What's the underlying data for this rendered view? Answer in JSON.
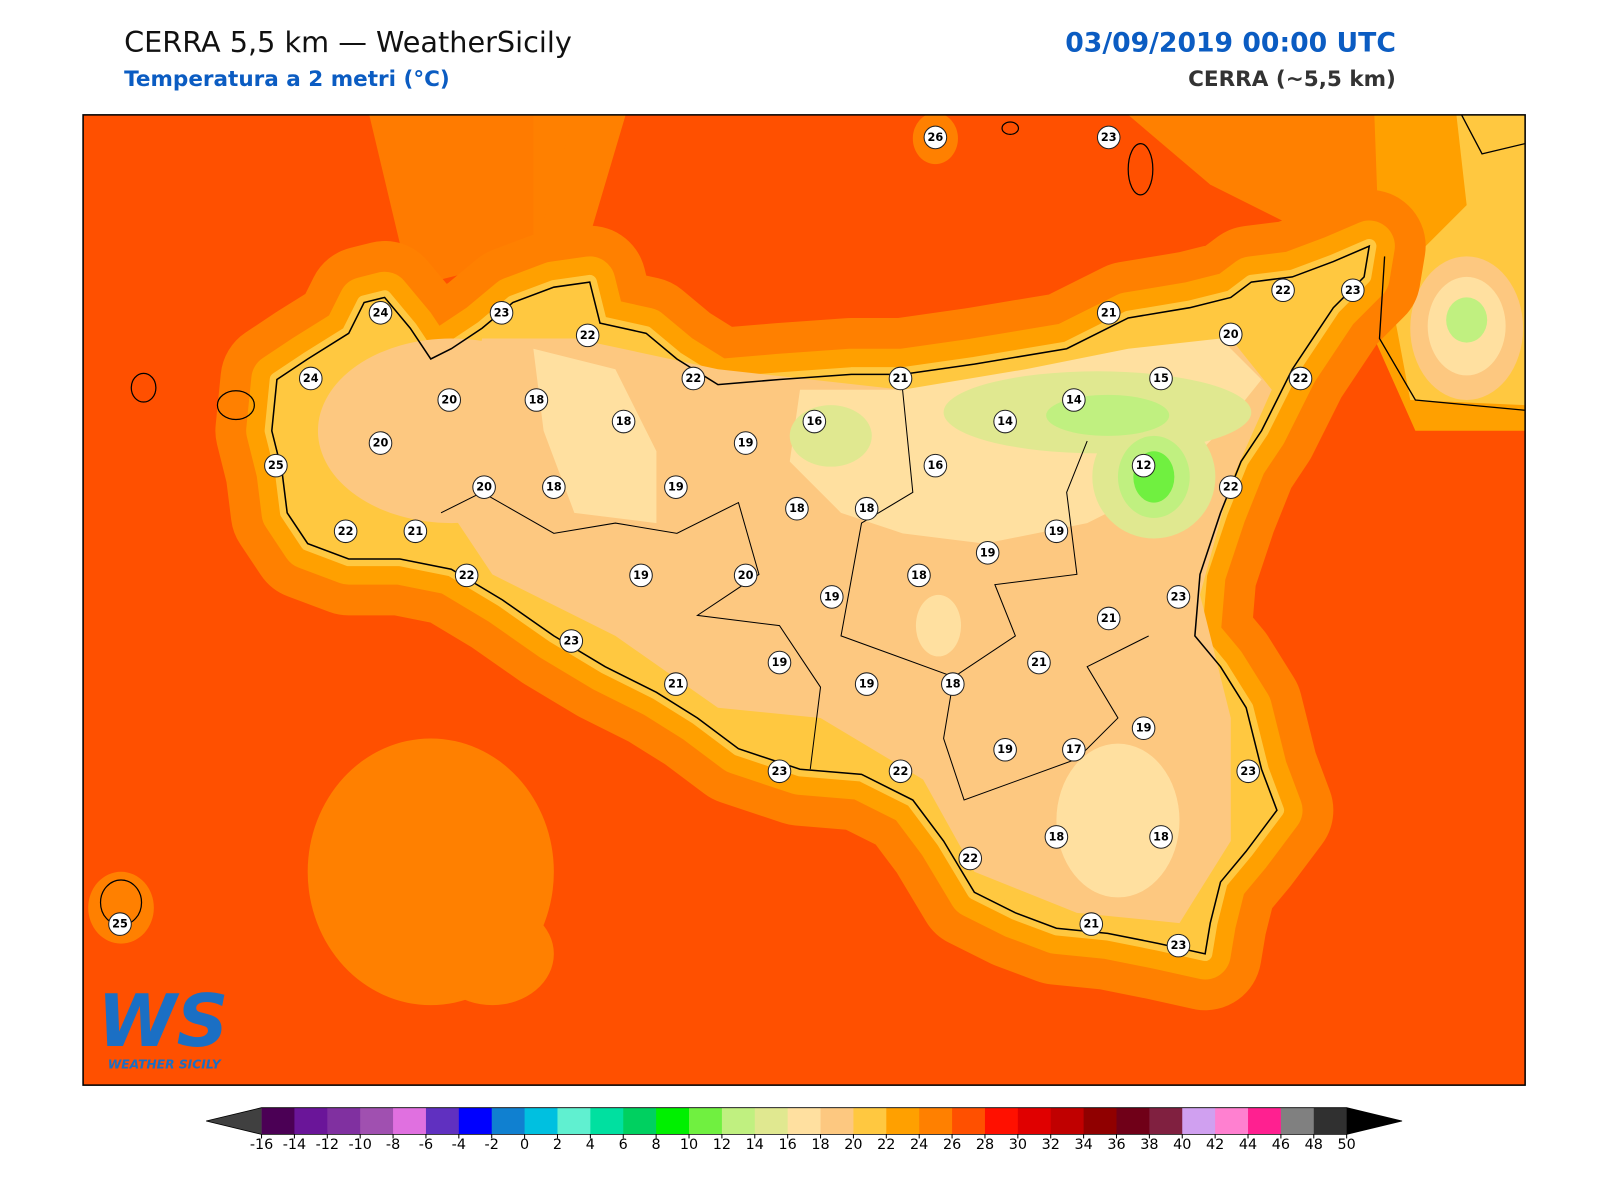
{
  "header": {
    "title": "CERRA 5,5 km — WeatherSicily",
    "subtitle": "Temperatura a 2 metri (°C)",
    "datetime": "03/09/2019 00:00 UTC",
    "model": "CERRA (~5,5 km)"
  },
  "logo": {
    "mark": "WS",
    "name": "WEATHER SICILY"
  },
  "stations": [
    26,
    23,
    24,
    23,
    22,
    22,
    21,
    21,
    22,
    23,
    20,
    15,
    22,
    14,
    14,
    24,
    20,
    18,
    18,
    19,
    16,
    16,
    12,
    22,
    25,
    20,
    20,
    18,
    19,
    18,
    18,
    19,
    19,
    22,
    21,
    22,
    19,
    20,
    19,
    18,
    23,
    21,
    23,
    19,
    21,
    21,
    19,
    18,
    19,
    19,
    17,
    23,
    22,
    23,
    22,
    18,
    18,
    21,
    23,
    25
  ],
  "colorbar": {
    "ticks": [
      -16,
      -14,
      -12,
      -10,
      -8,
      -6,
      -4,
      -2,
      0,
      2,
      4,
      6,
      8,
      10,
      12,
      14,
      16,
      18,
      20,
      22,
      24,
      26,
      28,
      30,
      32,
      34,
      36,
      38,
      40,
      42,
      44,
      46,
      48,
      50
    ],
    "colors": [
      "#4b0055",
      "#6a1599",
      "#8030a0",
      "#a050b0",
      "#e070e0",
      "#6030c0",
      "#0000ff",
      "#1080d0",
      "#00c0e0",
      "#60f0d0",
      "#00e0a0",
      "#00d060",
      "#00f000",
      "#70f040",
      "#c0f080",
      "#e0e890",
      "#ffe0a0",
      "#fdc880",
      "#ffc840",
      "#ffa000",
      "#ff8000",
      "#ff5000",
      "#ff1000",
      "#e00000",
      "#c00000",
      "#900000",
      "#700018",
      "#802040",
      "#d0a0f0",
      "#ff80d0",
      "#ff2090",
      "#808080",
      "#303030"
    ],
    "under_color": "#404040",
    "over_color": "#000000"
  }
}
